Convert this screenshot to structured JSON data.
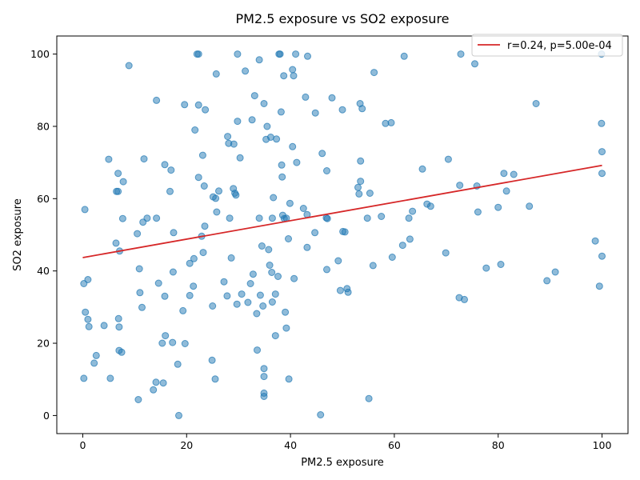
{
  "chart_data": {
    "type": "scatter",
    "title": "PM2.5 exposure vs SO2 exposure",
    "xlabel": "PM2.5 exposure",
    "ylabel": "SO2 exposure",
    "xlim": [
      -5,
      105
    ],
    "ylim": [
      -5,
      105
    ],
    "xticks": [
      0,
      20,
      40,
      60,
      80,
      100
    ],
    "yticks": [
      0,
      20,
      40,
      60,
      80,
      100
    ],
    "grid": false,
    "legend_position": "top-right",
    "point_color": "#1f77b4",
    "line_color": "#d62728",
    "fit_line": {
      "label": "r=0.24, p=5.00e-04",
      "x": [
        0,
        100
      ],
      "y": [
        43.7,
        69.2
      ]
    },
    "points": [
      [
        0.2,
        10.3
      ],
      [
        0.2,
        36.5
      ],
      [
        0.4,
        57.0
      ],
      [
        0.5,
        28.6
      ],
      [
        1.0,
        26.6
      ],
      [
        1.0,
        37.6
      ],
      [
        1.2,
        24.6
      ],
      [
        2.2,
        14.5
      ],
      [
        2.6,
        16.6
      ],
      [
        4.1,
        24.9
      ],
      [
        5.0,
        70.9
      ],
      [
        5.3,
        10.3
      ],
      [
        6.4,
        47.7
      ],
      [
        6.5,
        62.0
      ],
      [
        6.8,
        62.0
      ],
      [
        6.8,
        67.0
      ],
      [
        6.9,
        26.8
      ],
      [
        7.0,
        24.5
      ],
      [
        7.0,
        18.0
      ],
      [
        7.1,
        45.5
      ],
      [
        7.5,
        17.5
      ],
      [
        7.7,
        54.5
      ],
      [
        7.8,
        64.7
      ],
      [
        8.9,
        96.8
      ],
      [
        10.5,
        50.3
      ],
      [
        10.7,
        4.4
      ],
      [
        10.9,
        40.6
      ],
      [
        11.0,
        34.0
      ],
      [
        11.4,
        29.9
      ],
      [
        11.6,
        53.5
      ],
      [
        11.8,
        71.0
      ],
      [
        12.4,
        54.6
      ],
      [
        13.6,
        7.1
      ],
      [
        14.1,
        9.2
      ],
      [
        14.2,
        54.6
      ],
      [
        14.2,
        87.2
      ],
      [
        14.6,
        36.6
      ],
      [
        15.3,
        20.0
      ],
      [
        15.5,
        9.0
      ],
      [
        15.8,
        69.4
      ],
      [
        15.8,
        33.0
      ],
      [
        15.9,
        22.1
      ],
      [
        16.8,
        62.0
      ],
      [
        17.0,
        67.9
      ],
      [
        17.3,
        20.2
      ],
      [
        17.4,
        39.7
      ],
      [
        17.5,
        50.6
      ],
      [
        18.3,
        14.2
      ],
      [
        18.5,
        0.0
      ],
      [
        19.3,
        29.0
      ],
      [
        19.6,
        86.0
      ],
      [
        19.7,
        19.9
      ],
      [
        20.6,
        33.2
      ],
      [
        20.6,
        42.1
      ],
      [
        21.3,
        35.8
      ],
      [
        21.4,
        43.4
      ],
      [
        21.6,
        79.0
      ],
      [
        22.0,
        100.0
      ],
      [
        22.3,
        100.0
      ],
      [
        22.3,
        85.9
      ],
      [
        22.3,
        65.9
      ],
      [
        22.9,
        49.6
      ],
      [
        23.1,
        72.0
      ],
      [
        23.2,
        45.1
      ],
      [
        23.4,
        63.5
      ],
      [
        23.5,
        52.4
      ],
      [
        23.6,
        84.6
      ],
      [
        24.9,
        15.3
      ],
      [
        25.0,
        30.3
      ],
      [
        25.1,
        60.5
      ],
      [
        25.5,
        10.1
      ],
      [
        25.6,
        60.1
      ],
      [
        25.7,
        94.5
      ],
      [
        25.8,
        56.3
      ],
      [
        26.2,
        62.1
      ],
      [
        27.2,
        37.0
      ],
      [
        27.8,
        33.1
      ],
      [
        27.9,
        77.2
      ],
      [
        28.1,
        75.3
      ],
      [
        28.3,
        54.6
      ],
      [
        28.6,
        43.6
      ],
      [
        29.0,
        62.8
      ],
      [
        29.1,
        75.1
      ],
      [
        29.3,
        61.5
      ],
      [
        29.5,
        61.0
      ],
      [
        29.7,
        30.8
      ],
      [
        29.8,
        100.0
      ],
      [
        29.8,
        81.4
      ],
      [
        30.3,
        71.3
      ],
      [
        30.6,
        33.6
      ],
      [
        31.3,
        95.3
      ],
      [
        31.8,
        31.3
      ],
      [
        32.3,
        36.5
      ],
      [
        32.6,
        81.8
      ],
      [
        32.8,
        39.1
      ],
      [
        33.1,
        88.5
      ],
      [
        33.5,
        28.2
      ],
      [
        33.6,
        18.1
      ],
      [
        34.0,
        98.4
      ],
      [
        34.0,
        54.6
      ],
      [
        34.2,
        33.3
      ],
      [
        34.5,
        46.9
      ],
      [
        34.7,
        30.3
      ],
      [
        34.9,
        13.0
      ],
      [
        34.9,
        10.8
      ],
      [
        34.9,
        6.2
      ],
      [
        34.9,
        5.3
      ],
      [
        34.9,
        86.3
      ],
      [
        35.3,
        76.4
      ],
      [
        35.5,
        80.0
      ],
      [
        35.8,
        45.9
      ],
      [
        36.0,
        41.6
      ],
      [
        36.2,
        77.0
      ],
      [
        36.4,
        39.6
      ],
      [
        36.5,
        31.4
      ],
      [
        36.5,
        54.6
      ],
      [
        36.7,
        60.3
      ],
      [
        37.1,
        33.6
      ],
      [
        37.1,
        22.1
      ],
      [
        37.3,
        76.5
      ],
      [
        37.6,
        38.5
      ],
      [
        37.8,
        100.0
      ],
      [
        38.0,
        100.0
      ],
      [
        38.2,
        84.0
      ],
      [
        38.3,
        69.3
      ],
      [
        38.4,
        66.0
      ],
      [
        38.5,
        55.4
      ],
      [
        38.7,
        94.0
      ],
      [
        38.8,
        54.5
      ],
      [
        39.0,
        28.6
      ],
      [
        39.2,
        54.6
      ],
      [
        39.2,
        24.2
      ],
      [
        39.6,
        48.9
      ],
      [
        39.7,
        10.1
      ],
      [
        39.9,
        58.7
      ],
      [
        40.4,
        95.7
      ],
      [
        40.4,
        74.4
      ],
      [
        40.6,
        94.0
      ],
      [
        40.7,
        37.9
      ],
      [
        41.0,
        100.0
      ],
      [
        41.2,
        70.0
      ],
      [
        42.5,
        57.3
      ],
      [
        42.9,
        88.1
      ],
      [
        43.2,
        55.6
      ],
      [
        43.2,
        46.5
      ],
      [
        43.3,
        99.4
      ],
      [
        44.7,
        50.6
      ],
      [
        44.8,
        83.7
      ],
      [
        45.8,
        0.2
      ],
      [
        46.1,
        72.5
      ],
      [
        46.9,
        54.7
      ],
      [
        47.0,
        40.4
      ],
      [
        47.0,
        67.7
      ],
      [
        47.1,
        54.5
      ],
      [
        48.0,
        87.9
      ],
      [
        49.2,
        42.8
      ],
      [
        49.6,
        34.6
      ],
      [
        50.0,
        84.6
      ],
      [
        50.1,
        50.9
      ],
      [
        50.5,
        50.8
      ],
      [
        50.9,
        35.1
      ],
      [
        51.1,
        34.1
      ],
      [
        53.0,
        63.1
      ],
      [
        53.2,
        61.3
      ],
      [
        53.4,
        86.3
      ],
      [
        53.5,
        70.4
      ],
      [
        53.5,
        64.8
      ],
      [
        53.8,
        84.9
      ],
      [
        54.8,
        54.6
      ],
      [
        55.1,
        4.7
      ],
      [
        55.3,
        61.5
      ],
      [
        55.9,
        41.5
      ],
      [
        56.1,
        94.9
      ],
      [
        57.5,
        55.1
      ],
      [
        58.3,
        80.8
      ],
      [
        59.4,
        81.0
      ],
      [
        59.6,
        43.8
      ],
      [
        61.6,
        47.1
      ],
      [
        61.9,
        99.4
      ],
      [
        62.8,
        54.6
      ],
      [
        63.0,
        48.8
      ],
      [
        63.5,
        56.5
      ],
      [
        65.4,
        68.2
      ],
      [
        66.3,
        58.5
      ],
      [
        67.0,
        57.9
      ],
      [
        69.9,
        45.0
      ],
      [
        70.4,
        70.9
      ],
      [
        72.5,
        32.6
      ],
      [
        72.6,
        63.7
      ],
      [
        72.8,
        100.0
      ],
      [
        73.5,
        32.1
      ],
      [
        75.5,
        97.3
      ],
      [
        75.9,
        63.5
      ],
      [
        76.1,
        56.3
      ],
      [
        77.7,
        40.8
      ],
      [
        80.0,
        57.6
      ],
      [
        80.5,
        41.8
      ],
      [
        81.1,
        67.0
      ],
      [
        81.6,
        62.1
      ],
      [
        83.0,
        66.7
      ],
      [
        86.0,
        57.9
      ],
      [
        87.3,
        86.3
      ],
      [
        89.4,
        37.3
      ],
      [
        91.0,
        39.7
      ],
      [
        98.7,
        48.3
      ],
      [
        99.5,
        35.8
      ],
      [
        99.9,
        100.0
      ],
      [
        99.9,
        80.8
      ],
      [
        100.0,
        73.0
      ],
      [
        100.0,
        67.0
      ],
      [
        100.0,
        44.1
      ]
    ]
  }
}
